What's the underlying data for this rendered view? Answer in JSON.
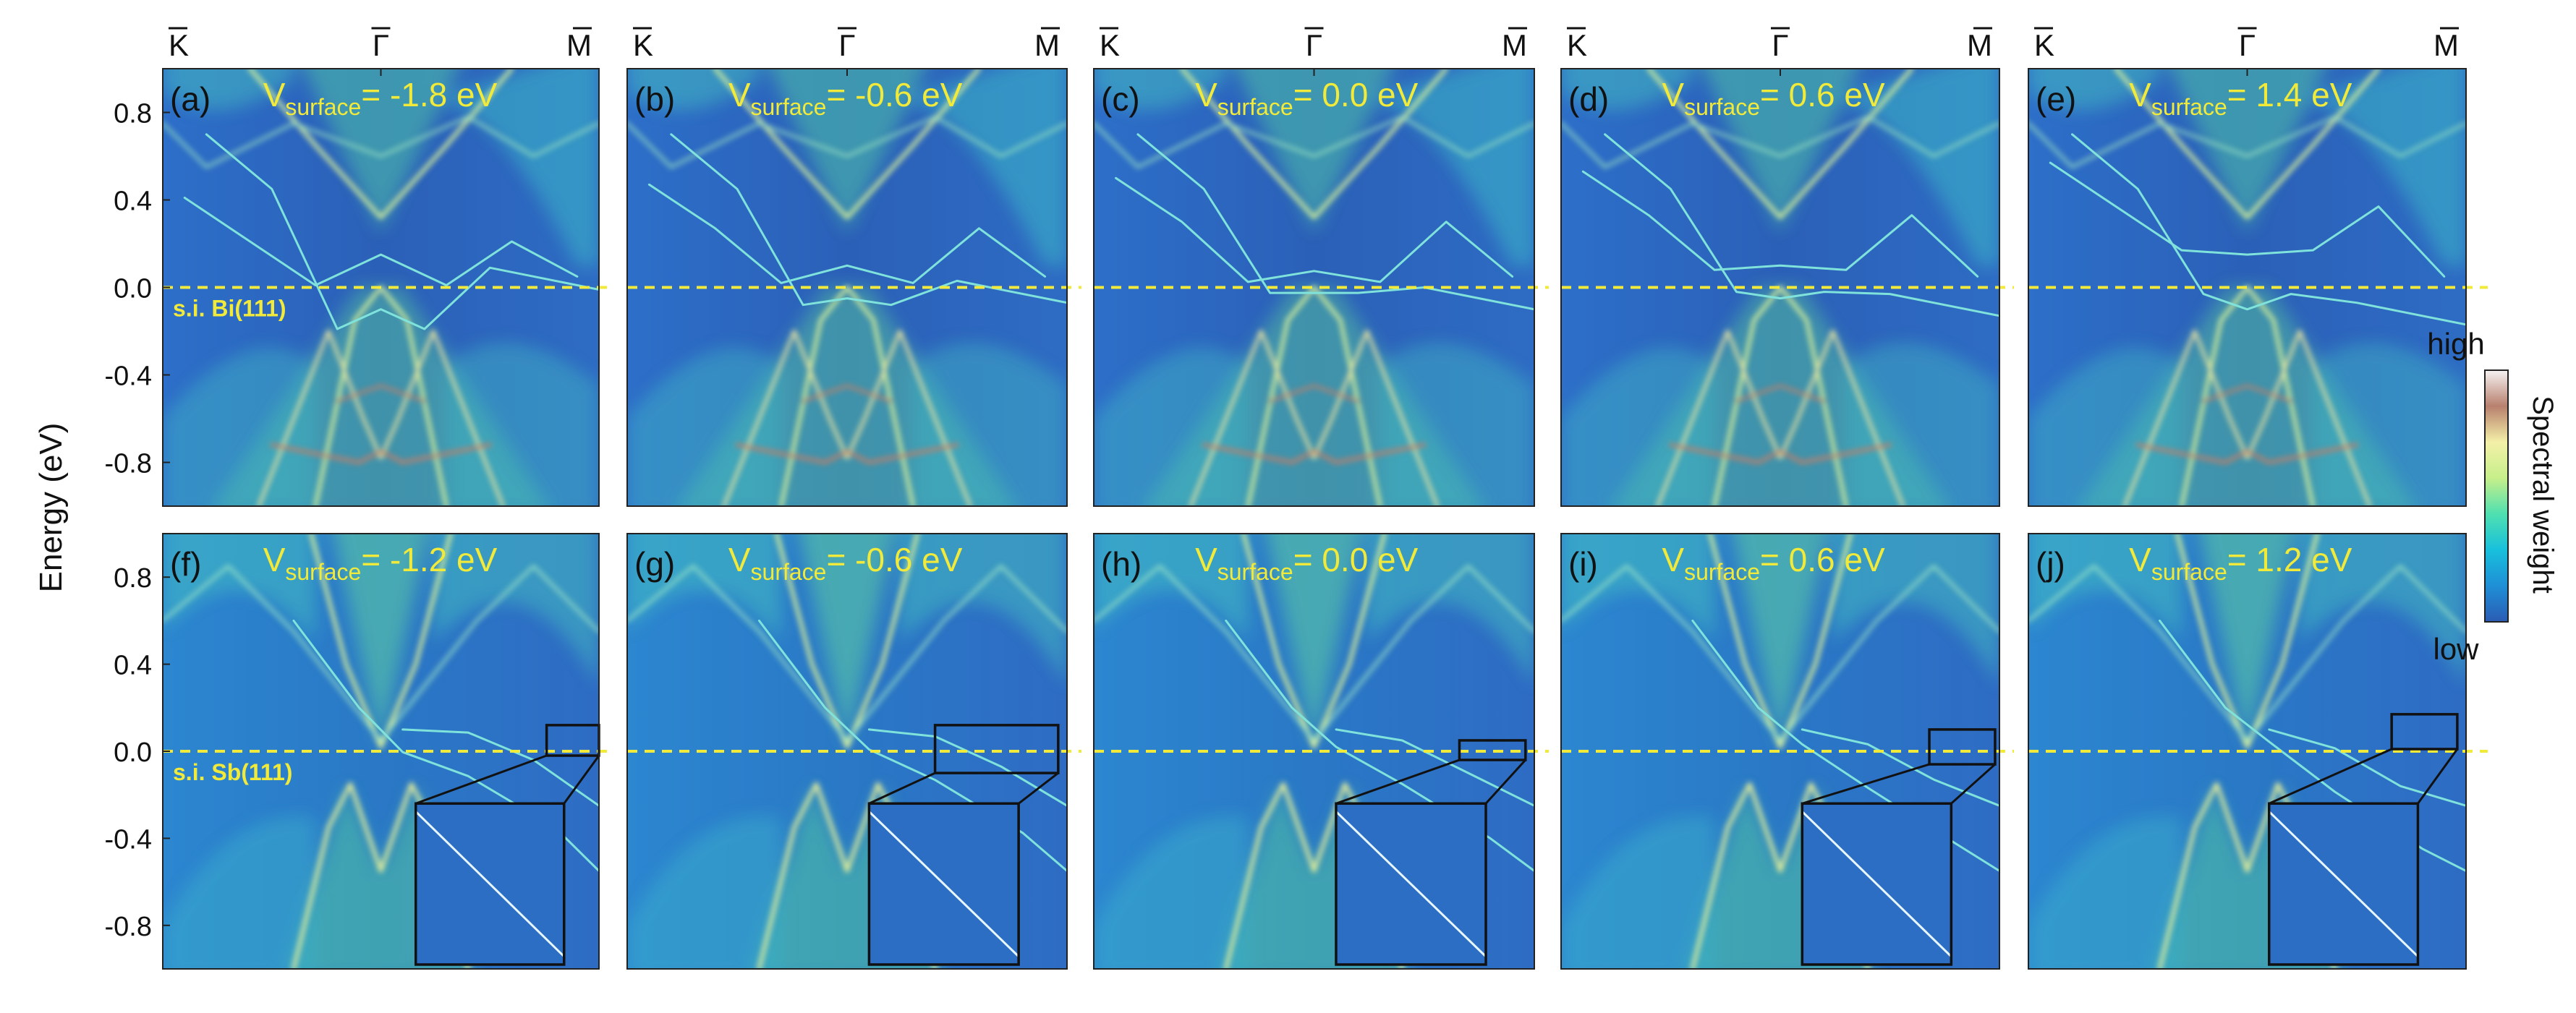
{
  "figure": {
    "ylabel": "Energy (eV)",
    "yticks": [
      "0.8",
      "0.4",
      "0.0",
      "-0.4",
      "-0.8"
    ],
    "kpoints": [
      "K",
      "Γ",
      "M"
    ],
    "colorbar": {
      "high": "high",
      "low": "low",
      "label": "Spectral weight"
    },
    "colormap": [
      "#2b5cb4",
      "#1f8fd6",
      "#18c0dc",
      "#4fe0b0",
      "#c6ef8a",
      "#f4f0a8",
      "#b8806e",
      "#f6f2f2"
    ],
    "fermi_line_color": "#f1ea3a",
    "label_color": "#f1ea3a",
    "row_labels": [
      "s.i. Bi(111)",
      "s.i. Sb(111)"
    ]
  },
  "chart_data": [
    {
      "type": "heatmap",
      "panel": "(a)",
      "material": "Bi(111)",
      "v_surface_eV": -1.8,
      "title_prefix": "V",
      "title_sub": "surface",
      "title_value": "= -1.8 eV",
      "ylim": [
        -1.0,
        1.0
      ],
      "xticks": [
        "K",
        "Γ",
        "M"
      ],
      "gap_eV": 0.2
    },
    {
      "type": "heatmap",
      "panel": "(b)",
      "material": "Bi(111)",
      "v_surface_eV": -0.6,
      "title_prefix": "V",
      "title_sub": "surface",
      "title_value": "= -0.6 eV",
      "ylim": [
        -1.0,
        1.0
      ],
      "xticks": [
        "K",
        "Γ",
        "M"
      ],
      "gap_eV": 0.1
    },
    {
      "type": "heatmap",
      "panel": "(c)",
      "material": "Bi(111)",
      "v_surface_eV": 0.0,
      "title_prefix": "V",
      "title_sub": "surface",
      "title_value": "= 0.0 eV",
      "ylim": [
        -1.0,
        1.0
      ],
      "xticks": [
        "K",
        "Γ",
        "M"
      ],
      "gap_eV": 0.05
    },
    {
      "type": "heatmap",
      "panel": "(d)",
      "material": "Bi(111)",
      "v_surface_eV": 0.6,
      "title_prefix": "V",
      "title_sub": "surface",
      "title_value": "= 0.6 eV",
      "ylim": [
        -1.0,
        1.0
      ],
      "xticks": [
        "K",
        "Γ",
        "M"
      ],
      "gap_eV": 0.1
    },
    {
      "type": "heatmap",
      "panel": "(e)",
      "material": "Bi(111)",
      "v_surface_eV": 1.4,
      "title_prefix": "V",
      "title_sub": "surface",
      "title_value": "= 1.4 eV",
      "ylim": [
        -1.0,
        1.0
      ],
      "xticks": [
        "K",
        "Γ",
        "M"
      ],
      "gap_eV": 0.2
    },
    {
      "type": "heatmap",
      "panel": "(f)",
      "material": "Sb(111)",
      "v_surface_eV": -1.2,
      "title_prefix": "V",
      "title_sub": "surface",
      "title_value": "= -1.2 eV",
      "ylim": [
        -1.0,
        1.0
      ],
      "xticks": [
        "K",
        "Γ",
        "M"
      ]
    },
    {
      "type": "heatmap",
      "panel": "(g)",
      "material": "Sb(111)",
      "v_surface_eV": -0.6,
      "title_prefix": "V",
      "title_sub": "surface",
      "title_value": "= -0.6 eV",
      "ylim": [
        -1.0,
        1.0
      ],
      "xticks": [
        "K",
        "Γ",
        "M"
      ]
    },
    {
      "type": "heatmap",
      "panel": "(h)",
      "material": "Sb(111)",
      "v_surface_eV": 0.0,
      "title_prefix": "V",
      "title_sub": "surface",
      "title_value": "= 0.0 eV",
      "ylim": [
        -1.0,
        1.0
      ],
      "xticks": [
        "K",
        "Γ",
        "M"
      ]
    },
    {
      "type": "heatmap",
      "panel": "(i)",
      "material": "Sb(111)",
      "v_surface_eV": 0.6,
      "title_prefix": "V",
      "title_sub": "surface",
      "title_value": "= 0.6 eV",
      "ylim": [
        -1.0,
        1.0
      ],
      "xticks": [
        "K",
        "Γ",
        "M"
      ]
    },
    {
      "type": "heatmap",
      "panel": "(j)",
      "material": "Sb(111)",
      "v_surface_eV": 1.2,
      "title_prefix": "V",
      "title_sub": "surface",
      "title_value": "= 1.2 eV",
      "ylim": [
        -1.0,
        1.0
      ],
      "xticks": [
        "K",
        "Γ",
        "M"
      ]
    }
  ]
}
